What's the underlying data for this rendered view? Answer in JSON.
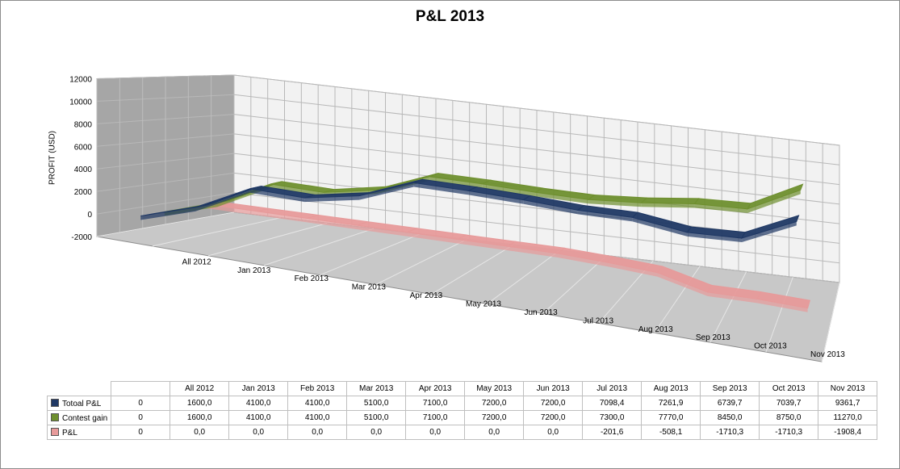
{
  "colors": {
    "total": "#1f3864",
    "contest": "#6e8f2e",
    "pl": "#e79a9a",
    "wall": "#a6a6a6",
    "floor": "#c8c8c8",
    "grid": "#b8b8b8"
  },
  "chart_data": {
    "type": "line",
    "title": "P&L 2013",
    "ylabel": "PROFIT (USD)",
    "xlabel": "",
    "ylim": [
      -2000,
      12000
    ],
    "yticks": [
      12000,
      10000,
      8000,
      6000,
      4000,
      2000,
      0,
      -2000
    ],
    "categories": [
      "",
      "All 2012",
      "Jan 2013",
      "Feb 2013",
      "Mar 2013",
      "Apr 2013",
      "May 2013",
      "Jun 2013",
      "Jul 2013",
      "Aug 2013",
      "Sep 2013",
      "Oct 2013",
      "Nov 2013"
    ],
    "grid": true,
    "legend": "data table",
    "series": [
      {
        "name": "Totoal P&L",
        "color_key": "total",
        "values": [
          0,
          1600,
          4100,
          4100,
          5100,
          7100,
          7200,
          7200,
          7098.4,
          7261.9,
          6739.7,
          7039.7,
          9361.7
        ],
        "labels": [
          "0",
          "1600,0",
          "4100,0",
          "4100,0",
          "5100,0",
          "7100,0",
          "7200,0",
          "7200,0",
          "7098,4",
          "7261,9",
          "6739,7",
          "7039,7",
          "9361,7"
        ]
      },
      {
        "name": "Contest gain",
        "color_key": "contest",
        "values": [
          0,
          1600,
          4100,
          4100,
          5100,
          7100,
          7200,
          7200,
          7300,
          7770,
          8450,
          8750,
          11270
        ],
        "labels": [
          "0",
          "1600,0",
          "4100,0",
          "4100,0",
          "5100,0",
          "7100,0",
          "7200,0",
          "7200,0",
          "7300,0",
          "7770,0",
          "8450,0",
          "8750,0",
          "11270,0"
        ]
      },
      {
        "name": "P&L",
        "color_key": "pl",
        "values": [
          0,
          0,
          0,
          0,
          0,
          0,
          0,
          0,
          -201.6,
          -508.1,
          -1710.3,
          -1710.3,
          -1908.4
        ],
        "labels": [
          "0",
          "0,0",
          "0,0",
          "0,0",
          "0,0",
          "0,0",
          "0,0",
          "0,0",
          "-201,6",
          "-508,1",
          "-1710,3",
          "-1710,3",
          "-1908,4"
        ]
      }
    ]
  }
}
